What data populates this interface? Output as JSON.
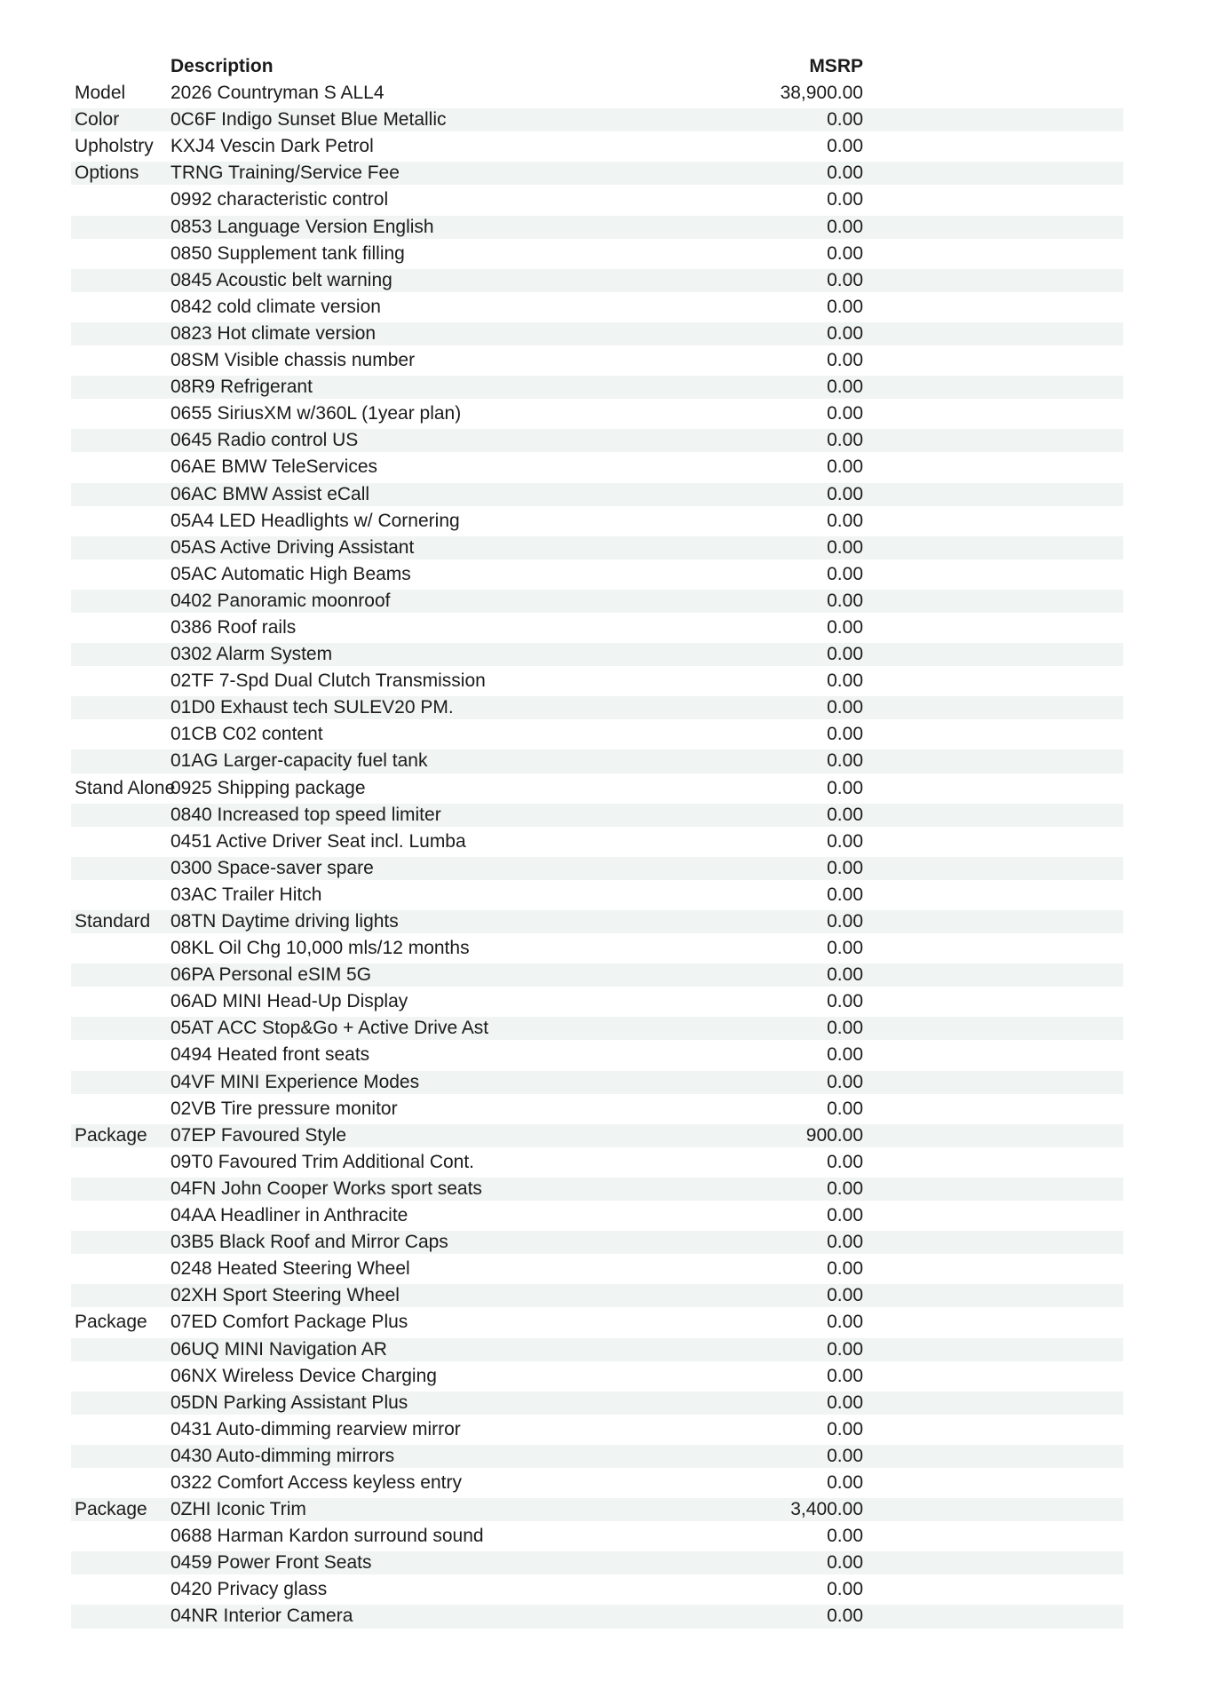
{
  "page": {
    "background": "#ffffff",
    "stripe_color": "#f0f4f2",
    "text_color": "#1b1b1b"
  },
  "table": {
    "headers": {
      "description": "Description",
      "msrp": "MSRP"
    },
    "rows": [
      {
        "label": "Model",
        "description": "2026 Countryman S ALL4",
        "msrp": "38,900.00"
      },
      {
        "label": "Color",
        "description": "0C6F Indigo Sunset Blue Metallic",
        "msrp": "0.00"
      },
      {
        "label": "Upholstry",
        "description": "KXJ4 Vescin Dark Petrol",
        "msrp": "0.00"
      },
      {
        "label": "Options",
        "description": "TRNG Training/Service Fee",
        "msrp": "0.00"
      },
      {
        "label": "",
        "description": "0992 characteristic control",
        "msrp": "0.00"
      },
      {
        "label": "",
        "description": "0853 Language Version English",
        "msrp": "0.00"
      },
      {
        "label": "",
        "description": "0850 Supplement tank filling",
        "msrp": "0.00"
      },
      {
        "label": "",
        "description": "0845 Acoustic belt warning",
        "msrp": "0.00"
      },
      {
        "label": "",
        "description": "0842 cold climate version",
        "msrp": "0.00"
      },
      {
        "label": "",
        "description": "0823 Hot climate version",
        "msrp": "0.00"
      },
      {
        "label": "",
        "description": "08SM Visible chassis number",
        "msrp": "0.00"
      },
      {
        "label": "",
        "description": "08R9 Refrigerant",
        "msrp": "0.00"
      },
      {
        "label": "",
        "description": "0655 SiriusXM w/360L (1year plan)",
        "msrp": "0.00"
      },
      {
        "label": "",
        "description": "0645 Radio control US",
        "msrp": "0.00"
      },
      {
        "label": "",
        "description": "06AE BMW TeleServices",
        "msrp": "0.00"
      },
      {
        "label": "",
        "description": "06AC BMW Assist eCall",
        "msrp": "0.00"
      },
      {
        "label": "",
        "description": "05A4 LED Headlights w/ Cornering",
        "msrp": "0.00"
      },
      {
        "label": "",
        "description": "05AS Active Driving Assistant",
        "msrp": "0.00"
      },
      {
        "label": "",
        "description": "05AC Automatic High Beams",
        "msrp": "0.00"
      },
      {
        "label": "",
        "description": "0402 Panoramic moonroof",
        "msrp": "0.00"
      },
      {
        "label": "",
        "description": "0386 Roof rails",
        "msrp": "0.00"
      },
      {
        "label": "",
        "description": "0302 Alarm System",
        "msrp": "0.00"
      },
      {
        "label": "",
        "description": "02TF 7-Spd Dual Clutch Transmission",
        "msrp": "0.00"
      },
      {
        "label": "",
        "description": "01D0 Exhaust tech SULEV20 PM.",
        "msrp": "0.00"
      },
      {
        "label": "",
        "description": "01CB C02 content",
        "msrp": "0.00"
      },
      {
        "label": "",
        "description": "01AG Larger-capacity fuel tank",
        "msrp": "0.00"
      },
      {
        "label": "Stand Alone",
        "description": "0925 Shipping package",
        "msrp": "0.00"
      },
      {
        "label": "",
        "description": "0840 Increased top speed limiter",
        "msrp": "0.00"
      },
      {
        "label": "",
        "description": "0451 Active Driver Seat incl. Lumba",
        "msrp": "0.00"
      },
      {
        "label": "",
        "description": "0300 Space-saver spare",
        "msrp": "0.00"
      },
      {
        "label": "",
        "description": "03AC Trailer Hitch",
        "msrp": "0.00"
      },
      {
        "label": "Standard",
        "description": "08TN Daytime driving lights",
        "msrp": "0.00"
      },
      {
        "label": "",
        "description": "08KL Oil Chg 10,000 mls/12 months",
        "msrp": "0.00"
      },
      {
        "label": "",
        "description": "06PA Personal eSIM 5G",
        "msrp": "0.00"
      },
      {
        "label": "",
        "description": "06AD MINI Head-Up Display",
        "msrp": "0.00"
      },
      {
        "label": "",
        "description": "05AT ACC Stop&Go + Active Drive Ast",
        "msrp": "0.00"
      },
      {
        "label": "",
        "description": "0494 Heated front seats",
        "msrp": "0.00"
      },
      {
        "label": "",
        "description": "04VF MINI Experience Modes",
        "msrp": "0.00"
      },
      {
        "label": "",
        "description": "02VB Tire pressure monitor",
        "msrp": "0.00"
      },
      {
        "label": "Package",
        "description": "07EP Favoured Style",
        "msrp": "900.00"
      },
      {
        "label": "",
        "description": "09T0 Favoured Trim Additional Cont.",
        "msrp": "0.00"
      },
      {
        "label": "",
        "description": "04FN John Cooper Works sport seats",
        "msrp": "0.00"
      },
      {
        "label": "",
        "description": "04AA Headliner in Anthracite",
        "msrp": "0.00"
      },
      {
        "label": "",
        "description": "03B5 Black Roof and Mirror Caps",
        "msrp": "0.00"
      },
      {
        "label": "",
        "description": "0248 Heated Steering Wheel",
        "msrp": "0.00"
      },
      {
        "label": "",
        "description": "02XH Sport Steering Wheel",
        "msrp": "0.00"
      },
      {
        "label": "Package",
        "description": "07ED Comfort Package Plus",
        "msrp": "0.00"
      },
      {
        "label": "",
        "description": "06UQ MINI Navigation AR",
        "msrp": "0.00"
      },
      {
        "label": "",
        "description": "06NX Wireless Device Charging",
        "msrp": "0.00"
      },
      {
        "label": "",
        "description": "05DN Parking Assistant Plus",
        "msrp": "0.00"
      },
      {
        "label": "",
        "description": "0431 Auto-dimming rearview mirror",
        "msrp": "0.00"
      },
      {
        "label": "",
        "description": "0430 Auto-dimming mirrors",
        "msrp": "0.00"
      },
      {
        "label": "",
        "description": "0322 Comfort Access keyless entry",
        "msrp": "0.00"
      },
      {
        "label": "Package",
        "description": "0ZHI Iconic Trim",
        "msrp": "3,400.00"
      },
      {
        "label": "",
        "description": "0688 Harman Kardon surround sound",
        "msrp": "0.00"
      },
      {
        "label": "",
        "description": "0459 Power Front Seats",
        "msrp": "0.00"
      },
      {
        "label": "",
        "description": "0420 Privacy glass",
        "msrp": "0.00"
      },
      {
        "label": "",
        "description": "04NR Interior Camera",
        "msrp": "0.00"
      }
    ]
  }
}
